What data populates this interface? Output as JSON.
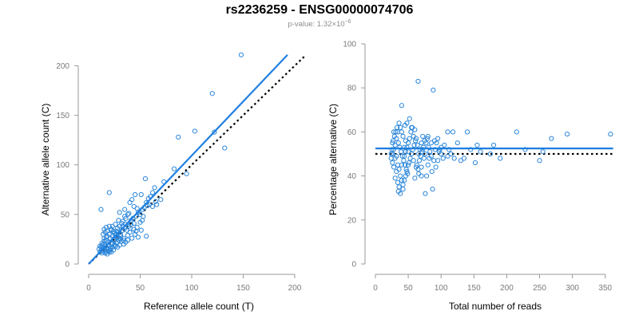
{
  "header": {
    "title": "rs2236259 - ENSG00000074706",
    "pvalue_prefix": "p-value: 1.32×10",
    "pvalue_exponent": "−6"
  },
  "colors": {
    "points": "#2b86d9",
    "fit_line": "#1f7fe0",
    "reference_line": "#000000",
    "axis": "#999999"
  },
  "chart_data": [
    {
      "type": "scatter",
      "xlabel": "Reference allele count (T)",
      "ylabel": "Alternative allele count (C)",
      "xlim": [
        0,
        200
      ],
      "ylim": [
        0,
        210
      ],
      "xticks": [
        0,
        50,
        100,
        150,
        200
      ],
      "yticks": [
        0,
        50,
        100,
        150,
        200
      ],
      "grid": false,
      "points": [
        [
          148,
          211
        ],
        [
          120,
          172
        ],
        [
          103,
          134
        ],
        [
          122,
          133
        ],
        [
          132,
          117
        ],
        [
          87,
          128
        ],
        [
          83,
          96
        ],
        [
          95,
          91
        ],
        [
          73,
          83
        ],
        [
          55,
          86
        ],
        [
          70,
          65
        ],
        [
          64,
          77
        ],
        [
          60,
          68
        ],
        [
          56,
          62
        ],
        [
          62,
          58
        ],
        [
          51,
          70
        ],
        [
          45,
          70
        ],
        [
          42,
          65
        ],
        [
          40,
          62
        ],
        [
          35,
          55
        ],
        [
          30,
          52
        ],
        [
          20,
          72
        ],
        [
          12,
          55
        ],
        [
          20,
          38
        ],
        [
          16,
          32
        ],
        [
          18,
          28
        ],
        [
          14,
          30
        ],
        [
          22,
          34
        ],
        [
          27,
          30
        ],
        [
          30,
          38
        ],
        [
          33,
          43
        ],
        [
          36,
          46
        ],
        [
          38,
          50
        ],
        [
          41,
          44
        ],
        [
          44,
          41
        ],
        [
          47,
          37
        ],
        [
          51,
          34
        ],
        [
          56,
          28
        ],
        [
          40,
          32
        ],
        [
          38,
          29
        ],
        [
          34,
          26
        ],
        [
          31,
          25
        ],
        [
          28,
          22
        ],
        [
          24,
          24
        ],
        [
          22,
          20
        ],
        [
          20,
          18
        ],
        [
          18,
          16
        ],
        [
          16,
          14
        ],
        [
          14,
          13
        ],
        [
          13,
          11
        ],
        [
          15,
          20
        ],
        [
          17,
          24
        ],
        [
          19,
          22
        ],
        [
          21,
          26
        ],
        [
          23,
          28
        ],
        [
          25,
          31
        ],
        [
          26,
          18
        ],
        [
          24,
          14
        ],
        [
          22,
          12
        ],
        [
          20,
          12
        ],
        [
          18,
          10
        ],
        [
          16,
          11
        ],
        [
          14,
          15
        ],
        [
          12,
          17
        ],
        [
          13,
          19
        ],
        [
          15,
          23
        ],
        [
          17,
          27
        ],
        [
          19,
          15
        ],
        [
          21,
          16
        ],
        [
          23,
          21
        ],
        [
          25,
          25
        ],
        [
          27,
          27
        ],
        [
          29,
          32
        ],
        [
          31,
          30
        ],
        [
          33,
          34
        ],
        [
          35,
          36
        ],
        [
          37,
          34
        ],
        [
          39,
          38
        ],
        [
          41,
          40
        ],
        [
          43,
          46
        ],
        [
          46,
          48
        ],
        [
          48,
          52
        ],
        [
          50,
          50
        ],
        [
          52,
          55
        ],
        [
          54,
          57
        ],
        [
          57,
          59
        ],
        [
          59,
          60
        ],
        [
          36,
          22
        ],
        [
          34,
          24
        ],
        [
          32,
          23
        ],
        [
          30,
          26
        ],
        [
          28,
          27
        ],
        [
          26,
          29
        ],
        [
          24,
          33
        ],
        [
          22,
          35
        ],
        [
          20,
          30
        ],
        [
          18,
          33
        ],
        [
          16,
          18
        ],
        [
          14,
          17
        ],
        [
          12,
          14
        ],
        [
          11,
          12
        ],
        [
          10,
          15
        ],
        [
          17,
          12
        ],
        [
          19,
          13
        ],
        [
          21,
          14
        ],
        [
          23,
          17
        ],
        [
          25,
          19
        ],
        [
          27,
          21
        ],
        [
          29,
          24
        ],
        [
          31,
          28
        ],
        [
          45,
          30
        ],
        [
          48,
          27
        ],
        [
          42,
          26
        ],
        [
          38,
          24
        ],
        [
          44,
          35
        ],
        [
          46,
          33
        ],
        [
          40,
          36
        ],
        [
          36,
          40
        ],
        [
          33,
          38
        ],
        [
          28,
          36
        ],
        [
          26,
          40
        ],
        [
          34,
          20
        ],
        [
          30,
          19
        ],
        [
          28,
          17
        ],
        [
          15,
          26
        ],
        [
          13,
          21
        ],
        [
          11,
          18
        ],
        [
          15,
          35
        ],
        [
          17,
          37
        ],
        [
          53,
          48
        ],
        [
          66,
          60
        ],
        [
          65,
          63
        ],
        [
          62,
          72
        ],
        [
          58,
          66
        ],
        [
          52,
          44
        ],
        [
          47,
          56
        ],
        [
          44,
          58
        ],
        [
          50,
          42
        ],
        [
          39,
          51
        ],
        [
          35,
          48
        ],
        [
          32,
          41
        ],
        [
          29,
          44
        ],
        [
          27,
          33
        ],
        [
          23,
          38
        ]
      ],
      "fit_line": [
        [
          0,
          0
        ],
        [
          193,
          211
        ]
      ],
      "reference_line": [
        [
          0,
          0
        ],
        [
          210,
          210
        ]
      ]
    },
    {
      "type": "scatter",
      "xlabel": "Total number of reads",
      "ylabel": "Percentage alternative (C)",
      "xlim": [
        0,
        360
      ],
      "ylim": [
        0,
        100
      ],
      "xticks": [
        0,
        50,
        100,
        150,
        200,
        250,
        300,
        350
      ],
      "yticks": [
        0,
        20,
        40,
        60,
        80,
        100
      ],
      "grid": false,
      "points": [
        [
          65,
          83
        ],
        [
          88,
          79
        ],
        [
          40,
          72
        ],
        [
          358,
          59
        ],
        [
          292,
          59
        ],
        [
          268,
          57
        ],
        [
          215,
          60
        ],
        [
          180,
          54
        ],
        [
          155,
          54
        ],
        [
          140,
          60
        ],
        [
          125,
          55
        ],
        [
          118,
          60
        ],
        [
          110,
          60
        ],
        [
          105,
          54
        ],
        [
          100,
          53
        ],
        [
          95,
          57
        ],
        [
          90,
          56
        ],
        [
          85,
          55
        ],
        [
          80,
          58
        ],
        [
          75,
          56
        ],
        [
          72,
          52
        ],
        [
          70,
          55
        ],
        [
          68,
          52
        ],
        [
          66,
          50
        ],
        [
          64,
          54
        ],
        [
          62,
          57
        ],
        [
          60,
          61
        ],
        [
          58,
          58
        ],
        [
          56,
          62
        ],
        [
          54,
          60
        ],
        [
          52,
          57
        ],
        [
          50,
          55
        ],
        [
          48,
          53
        ],
        [
          46,
          51
        ],
        [
          44,
          49
        ],
        [
          42,
          58
        ],
        [
          40,
          60
        ],
        [
          38,
          62
        ],
        [
          36,
          64
        ],
        [
          34,
          60
        ],
        [
          32,
          57
        ],
        [
          30,
          54
        ],
        [
          28,
          52
        ],
        [
          26,
          50
        ],
        [
          24,
          48
        ],
        [
          60,
          39
        ],
        [
          70,
          44
        ],
        [
          76,
          32
        ],
        [
          87,
          34
        ],
        [
          130,
          47
        ],
        [
          152,
          46
        ],
        [
          190,
          48
        ],
        [
          250,
          47
        ],
        [
          255,
          51
        ],
        [
          228,
          52
        ],
        [
          175,
          50
        ],
        [
          160,
          51
        ],
        [
          145,
          52
        ],
        [
          120,
          48
        ],
        [
          110,
          49
        ],
        [
          100,
          50
        ],
        [
          95,
          47
        ],
        [
          80,
          45
        ],
        [
          78,
          40
        ],
        [
          74,
          48
        ],
        [
          50,
          45
        ],
        [
          48,
          42
        ],
        [
          46,
          40
        ],
        [
          44,
          38
        ],
        [
          42,
          36
        ],
        [
          40,
          38
        ],
        [
          38,
          40
        ],
        [
          36,
          35
        ],
        [
          34,
          37
        ],
        [
          32,
          42
        ],
        [
          30,
          39
        ],
        [
          28,
          44
        ],
        [
          26,
          46
        ],
        [
          24,
          50
        ],
        [
          27,
          56
        ],
        [
          29,
          58
        ],
        [
          31,
          60
        ],
        [
          33,
          62
        ],
        [
          35,
          55
        ],
        [
          37,
          53
        ],
        [
          39,
          51
        ],
        [
          41,
          49
        ],
        [
          43,
          47
        ],
        [
          45,
          45
        ],
        [
          47,
          43
        ],
        [
          49,
          41
        ],
        [
          51,
          46
        ],
        [
          53,
          48
        ],
        [
          55,
          50
        ],
        [
          57,
          52
        ],
        [
          59,
          54
        ],
        [
          61,
          56
        ],
        [
          63,
          45
        ],
        [
          65,
          43
        ],
        [
          67,
          47
        ],
        [
          69,
          49
        ],
        [
          71,
          51
        ],
        [
          73,
          53
        ],
        [
          77,
          55
        ],
        [
          79,
          57
        ],
        [
          81,
          53
        ],
        [
          83,
          51
        ],
        [
          85,
          49
        ],
        [
          89,
          47
        ],
        [
          91,
          52
        ],
        [
          93,
          55
        ],
        [
          97,
          51
        ],
        [
          103,
          48
        ],
        [
          115,
          50
        ],
        [
          112,
          52
        ],
        [
          135,
          48
        ],
        [
          35,
          33
        ],
        [
          38,
          32
        ],
        [
          42,
          34
        ],
        [
          45,
          63
        ],
        [
          48,
          64
        ],
        [
          52,
          66
        ],
        [
          55,
          62
        ],
        [
          30,
          48
        ],
        [
          25,
          52
        ],
        [
          26,
          55
        ],
        [
          28,
          60
        ],
        [
          32,
          49
        ],
        [
          34,
          45
        ],
        [
          36,
          43
        ],
        [
          40,
          45
        ],
        [
          44,
          53
        ],
        [
          46,
          56
        ],
        [
          50,
          51
        ],
        [
          58,
          47
        ],
        [
          62,
          44
        ],
        [
          66,
          41
        ],
        [
          70,
          40
        ],
        [
          72,
          58
        ],
        [
          76,
          50
        ],
        [
          82,
          48
        ],
        [
          86,
          42
        ],
        [
          92,
          44
        ],
        [
          98,
          52
        ]
      ],
      "fit_line": [
        [
          0,
          52.5
        ],
        [
          362,
          52.5
        ]
      ],
      "reference_line": [
        [
          0,
          50
        ],
        [
          362,
          50
        ]
      ]
    }
  ]
}
